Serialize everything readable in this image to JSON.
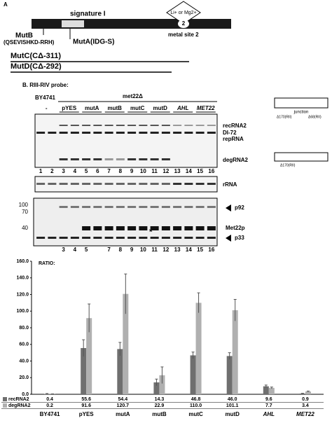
{
  "panel_a": {
    "label": "A",
    "signature": "signature I",
    "metal_ion": "Li+ or Mg2+",
    "site_number": "2",
    "metal_site": "metal site 2",
    "mutb": "MutB",
    "mutb_seq": "(QSEVISHKD-RRH)",
    "muta": "MutA(IDG-S)",
    "mutc": "MutC(CΔ-311)",
    "mutd": "MutD(CΔ-292)"
  },
  "panel_b": {
    "title": "B. RIII-RIV probe:",
    "strain": "BY4741",
    "mutant": "met22Δ",
    "lanes": [
      "-",
      "pYES",
      "mutA",
      "mutB",
      "mutC",
      "mutD",
      "AHL",
      "MET22"
    ],
    "bands": [
      "recRNA2",
      "DI-72",
      "repRNA",
      "degRNA2"
    ],
    "rrna": "rRNA",
    "lane_numbers": [
      1,
      2,
      3,
      4,
      5,
      6,
      7,
      8,
      9,
      10,
      11,
      12,
      13,
      14,
      15,
      16
    ],
    "markers": [
      100,
      70,
      40
    ],
    "proteins": [
      "p92",
      "Met22p",
      "p33"
    ],
    "star": "*",
    "western_lanes": [
      3,
      4,
      5,
      7,
      8,
      9,
      10,
      11,
      12,
      13,
      14,
      15,
      16
    ],
    "inset_labels": [
      "junction",
      "Δ170(RII)",
      "Δ68(RII)",
      "Δ170(RII)"
    ]
  },
  "chart_data": {
    "type": "bar",
    "title": "RATIO:",
    "categories": [
      "BY4741",
      "pYES",
      "mutA",
      "mutB",
      "mutC",
      "mutD",
      "AHL",
      "MET22"
    ],
    "series": [
      {
        "name": "recRNA2",
        "color": "#6f6f6f",
        "values": [
          0.4,
          55.6,
          54.4,
          14.3,
          46.8,
          46.0,
          9.6,
          0.9
        ],
        "value_labels": [
          "0.4",
          "55.6",
          "54.4",
          "14.3",
          "46.8",
          "46.0",
          "9.6",
          "0.9"
        ],
        "errors": [
          0.5,
          10,
          8,
          4,
          4,
          4,
          1.5,
          0.3
        ]
      },
      {
        "name": "degRNA2",
        "color": "#b0b0b0",
        "values": [
          0.2,
          91.6,
          120.7,
          22.9,
          110.0,
          101.1,
          7.7,
          3.4
        ],
        "value_labels": [
          "0.2",
          "91.6",
          "120.7",
          "22.9",
          "110.0",
          "101.1",
          "7.7",
          "3.4"
        ],
        "errors": [
          0.3,
          17,
          24,
          10,
          12,
          13,
          1,
          0.5
        ]
      }
    ],
    "ylim": [
      0,
      160
    ],
    "yticks": [
      {
        "value": 0,
        "label": "0.0"
      },
      {
        "value": 20,
        "label": "20.0"
      },
      {
        "value": 40,
        "label": "40.0"
      },
      {
        "value": 60,
        "label": "60.0"
      },
      {
        "value": 80,
        "label": "80.0"
      },
      {
        "value": 100,
        "label": "100.0"
      },
      {
        "value": 120,
        "label": "120.0"
      },
      {
        "value": 140,
        "label": "140.0"
      },
      {
        "value": 160,
        "label": "160.0"
      }
    ]
  }
}
